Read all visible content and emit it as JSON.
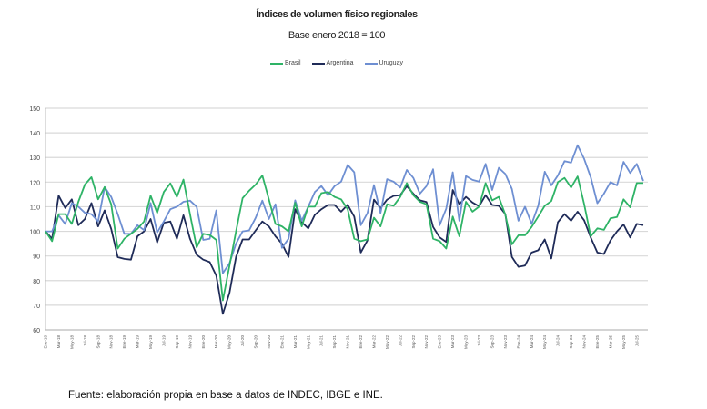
{
  "chart_data": {
    "type": "line",
    "title": "Índices de volumen físico regionales",
    "subtitle": "Base enero 2018 = 100",
    "xlabel": "",
    "ylabel": "",
    "ylim": [
      60,
      150
    ],
    "y_ticks": [
      "60",
      "70",
      "80",
      "90",
      "100",
      "110",
      "120",
      "130",
      "140",
      "150"
    ],
    "grid": true,
    "legend_position": "top-center",
    "frequency": "monthly, Jan-2018 to Aug-2025; one tick label every 2 months",
    "x_ticks": [
      "Ene-18",
      "Mar-18",
      "May-18",
      "Jul-18",
      "Sep-18",
      "Nov-18",
      "Ene-19",
      "Mar-19",
      "May-19",
      "Jul-19",
      "Sep-19",
      "Nov-19",
      "Ene-20",
      "Mar-20",
      "May-20",
      "Jul-20",
      "Sep-20",
      "Nov-20",
      "Ene-21",
      "Mar-21",
      "May-21",
      "Jul-21",
      "Sep-21",
      "Nov-21",
      "Ene-22",
      "Mar-22",
      "May-22",
      "Jul-22",
      "Sep-22",
      "Nov-22",
      "Ene-23",
      "Mar-23",
      "May-23",
      "Jul-23",
      "Sep-23",
      "Nov-23",
      "Ene-24",
      "Mar-24",
      "May-24",
      "Jul-24",
      "Sep-24",
      "Nov-24",
      "Ene-25",
      "Mar-25",
      "May-25",
      "Jul-25"
    ],
    "series": [
      {
        "name": "Brasil",
        "color": "#2eb366",
        "values": [
          100,
          96,
          107,
          107,
          103,
          112,
          119,
          122,
          113,
          118,
          111,
          93,
          97,
          99,
          101,
          104,
          114.5,
          107.5,
          116,
          119.5,
          114,
          121,
          107,
          93.5,
          99,
          98.5,
          96.5,
          72,
          86,
          100,
          113.5,
          116.5,
          119,
          122.7,
          113,
          103,
          102,
          100,
          111.6,
          102,
          110,
          110,
          115.5,
          116,
          114,
          113,
          109,
          97,
          96,
          96.7,
          105.5,
          102,
          111,
          110.4,
          114,
          119.6,
          114.7,
          112,
          111,
          97,
          96,
          93,
          106,
          98,
          112,
          108,
          110,
          119.6,
          112.6,
          114,
          106.7,
          94.7,
          98.4,
          98.4,
          101.8,
          106,
          110.4,
          112.3,
          120,
          121.7,
          117.8,
          122.3,
          111,
          98,
          101.2,
          100.6,
          105.3,
          105.8,
          113,
          109.8,
          119.6,
          119.6
        ]
      },
      {
        "name": "Argentina",
        "color": "#1f2b58",
        "values": [
          100,
          97,
          114.5,
          109.5,
          113,
          102.5,
          105,
          111.5,
          102,
          108.5,
          101,
          89.5,
          88.8,
          88.5,
          98,
          100,
          105,
          95.5,
          103.5,
          104,
          97,
          106.5,
          97,
          90.5,
          88.5,
          87.5,
          82,
          66.5,
          75,
          89.6,
          96.7,
          96.7,
          100.4,
          104,
          102,
          98,
          95,
          89.6,
          109,
          103.7,
          101.2,
          106.7,
          109,
          110.7,
          110.7,
          108,
          110.8,
          106,
          91.4,
          96.3,
          112.9,
          109.4,
          112.9,
          114.4,
          114.7,
          118.4,
          115.3,
          112.6,
          111.9,
          101.8,
          97.5,
          95.7,
          116.8,
          111,
          114,
          111.7,
          110.2,
          114.7,
          110.7,
          110.4,
          107,
          89.6,
          85.6,
          86.1,
          91.4,
          92.3,
          96.7,
          89,
          103.7,
          107,
          104.3,
          108,
          104.5,
          97.5,
          91.4,
          90.8,
          96.3,
          100,
          102.8,
          97.5,
          103,
          102.5
        ]
      },
      {
        "name": "Uruguay",
        "color": "#6e8fd2",
        "values": [
          100,
          100,
          106.5,
          103,
          111.5,
          110,
          107.5,
          107,
          104,
          118,
          114,
          107,
          99,
          99,
          102.5,
          100.5,
          111.5,
          99.5,
          104,
          109,
          110,
          112,
          112.5,
          110,
          96.5,
          97,
          108.5,
          83,
          87,
          95,
          100,
          100.4,
          105.5,
          112.5,
          105,
          111,
          93.3,
          97,
          112.6,
          104.3,
          110,
          116,
          118.4,
          114.7,
          118.4,
          120.2,
          127,
          124,
          102.5,
          107.4,
          118.8,
          107.4,
          121.2,
          120.2,
          117.8,
          124.9,
          121.7,
          115.3,
          118.4,
          125.2,
          102.5,
          109.2,
          124,
          104.3,
          122.5,
          120.9,
          120.2,
          127.4,
          116.8,
          125.8,
          123.3,
          117.2,
          104.3,
          110,
          103,
          110.4,
          124.2,
          118.7,
          122.7,
          128.5,
          127.9,
          135,
          129.4,
          122,
          111.4,
          115.3,
          120,
          118.7,
          128.2,
          123.7,
          127.4,
          120.5
        ]
      }
    ]
  },
  "footer": "Fuente: elaboración propia en base a datos de INDEC, IBGE e INE."
}
